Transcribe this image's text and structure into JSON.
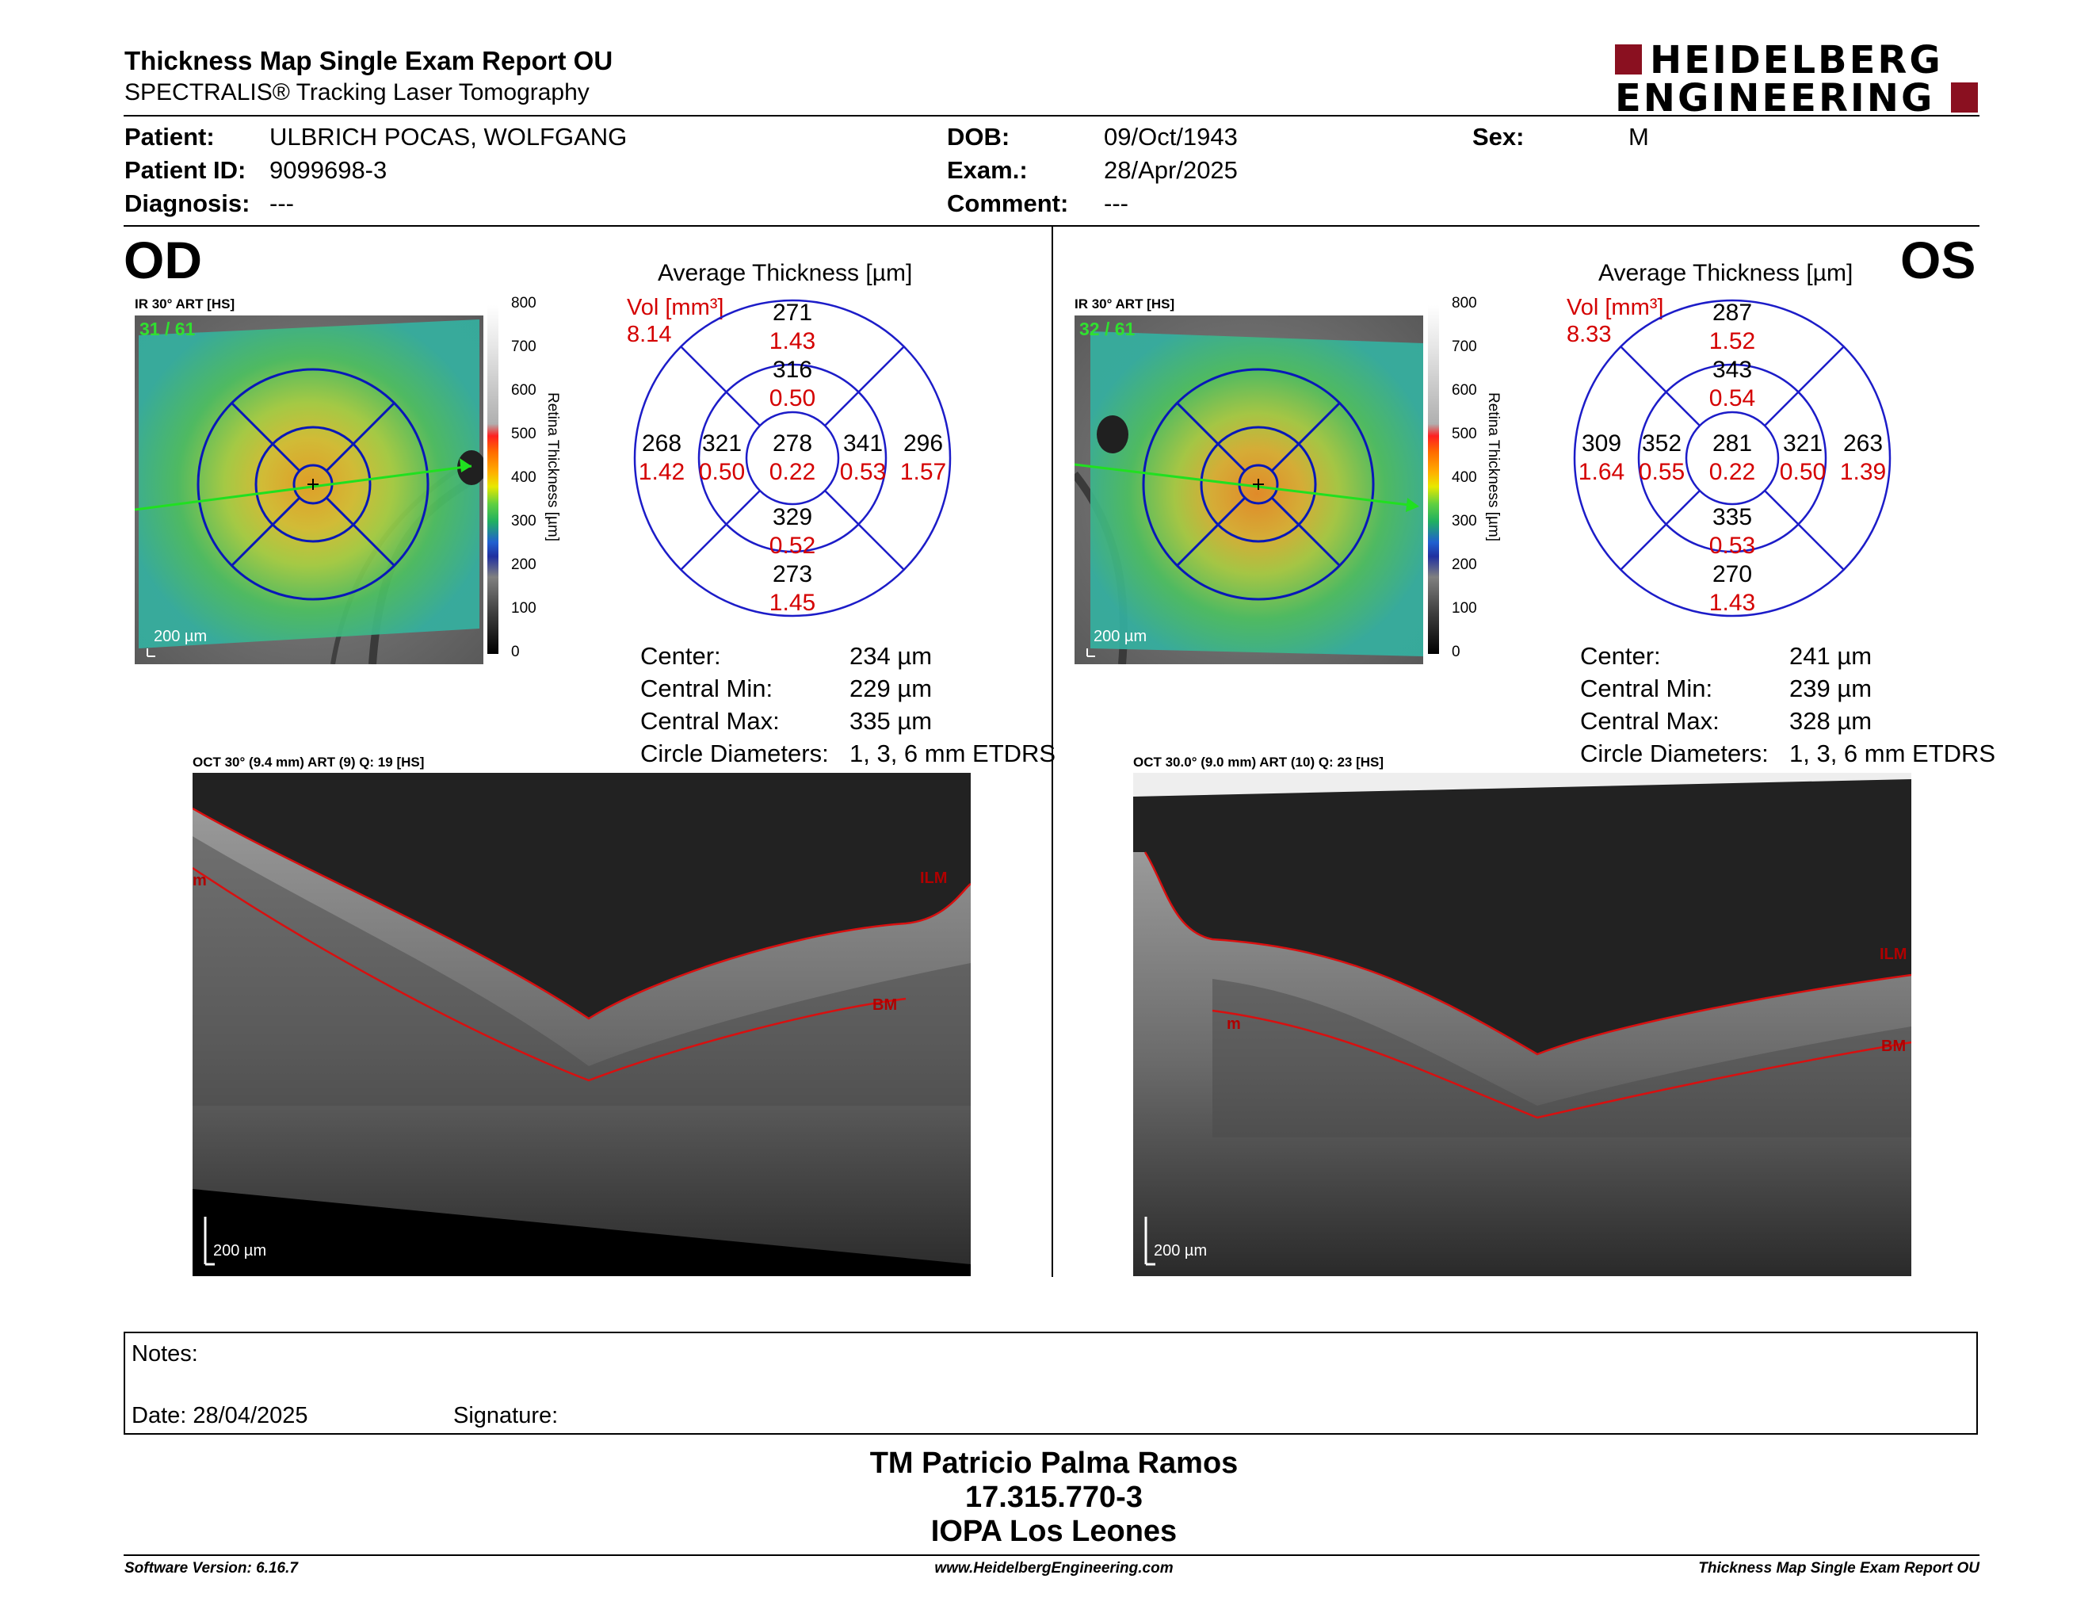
{
  "header": {
    "title": "Thickness Map Single Exam Report OU",
    "subtitle": "SPECTRALIS® Tracking Laser Tomography",
    "logo_line1": "HEIDELBERG",
    "logo_line2": "ENGINEERING"
  },
  "patient": {
    "patient_label": "Patient:",
    "patient_value": "ULBRICH POCAS, WOLFGANG",
    "patient_id_label": "Patient ID:",
    "patient_id_value": "9099698-3",
    "diagnosis_label": "Diagnosis:",
    "diagnosis_value": "---",
    "dob_label": "DOB:",
    "dob_value": "09/Oct/1943",
    "exam_label": "Exam.:",
    "exam_value": "28/Apr/2025",
    "comment_label": "Comment:",
    "comment_value": "---",
    "sex_label": "Sex:",
    "sex_value": "M"
  },
  "od": {
    "eye_label": "OD",
    "ir_label": "IR 30° ART [HS]",
    "frame": "31 / 61",
    "scale": "200 µm",
    "avg_title": "Average Thickness [µm]",
    "vol_label": "Vol [mm³]",
    "vol_value": "8.14",
    "grid": {
      "center_t": "278",
      "center_v": "0.22",
      "inner_sup_t": "316",
      "inner_sup_v": "0.50",
      "inner_inf_t": "329",
      "inner_inf_v": "0.52",
      "inner_temp_t": "321",
      "inner_temp_v": "0.50",
      "inner_nas_t": "341",
      "inner_nas_v": "0.53",
      "outer_sup_t": "271",
      "outer_sup_v": "1.43",
      "outer_inf_t": "273",
      "outer_inf_v": "1.45",
      "outer_temp_t": "268",
      "outer_temp_v": "1.42",
      "outer_nas_t": "296",
      "outer_nas_v": "1.57"
    },
    "center_label": "Center:",
    "center_value": "234 µm",
    "cmin_label": "Central Min:",
    "cmin_value": "229 µm",
    "cmax_label": "Central Max:",
    "cmax_value": "335 µm",
    "circ_label": "Circle Diameters:",
    "circ_value": "1, 3, 6 mm ETDRS",
    "oct_label": "OCT 30° (9.4 mm) ART (9) Q: 19 [HS]",
    "oct_scale": "200 µm",
    "ilm": "ILM",
    "bm": "BM",
    "m": "m"
  },
  "os": {
    "eye_label": "OS",
    "ir_label": "IR 30° ART [HS]",
    "frame": "32 / 61",
    "scale": "200 µm",
    "avg_title": "Average Thickness [µm]",
    "vol_label": "Vol [mm³]",
    "vol_value": "8.33",
    "grid": {
      "center_t": "281",
      "center_v": "0.22",
      "inner_sup_t": "343",
      "inner_sup_v": "0.54",
      "inner_inf_t": "335",
      "inner_inf_v": "0.53",
      "inner_temp_t": "321",
      "inner_temp_v": "0.50",
      "inner_nas_t": "352",
      "inner_nas_v": "0.55",
      "outer_sup_t": "287",
      "outer_sup_v": "1.52",
      "outer_inf_t": "270",
      "outer_inf_v": "1.43",
      "outer_temp_t": "263",
      "outer_temp_v": "1.39",
      "outer_nas_t": "309",
      "outer_nas_v": "1.64"
    },
    "center_label": "Center:",
    "center_value": "241 µm",
    "cmin_label": "Central Min:",
    "cmin_value": "239 µm",
    "cmax_label": "Central Max:",
    "cmax_value": "328 µm",
    "circ_label": "Circle Diameters:",
    "circ_value": "1, 3, 6 mm ETDRS",
    "oct_label": "OCT 30.0° (9.0 mm) ART (10) Q: 23 [HS]",
    "oct_scale": "200 µm",
    "ilm": "ILM",
    "bm": "BM",
    "m": "m"
  },
  "colorbar": {
    "ticks": [
      "800",
      "700",
      "600",
      "500",
      "400",
      "300",
      "200",
      "100",
      "0"
    ],
    "label": "Retina Thickness [µm]"
  },
  "notes": {
    "notes_label": "Notes:",
    "date_label": "Date: 28/04/2025",
    "signature_label": "Signature:"
  },
  "signer": {
    "name": "TM Patricio Palma Ramos",
    "id": "17.315.770-3",
    "org": "IOPA Los Leones"
  },
  "footer": {
    "software": "Software Version: 6.16.7",
    "url": "www.HeidelbergEngineering.com",
    "report": "Thickness Map Single Exam Report OU"
  }
}
